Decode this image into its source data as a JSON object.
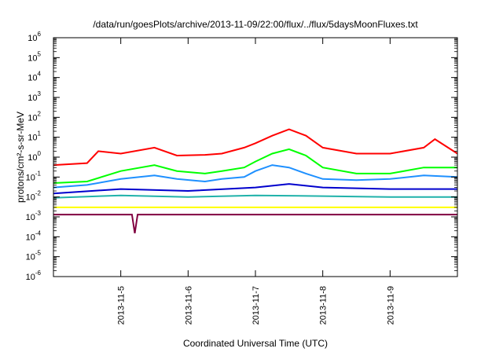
{
  "chart_data": {
    "type": "line",
    "title": "/data/run/goesPlots/archive/2013-11-09/22:00/flux/../flux/5daysMoonFluxes.txt",
    "xlabel": "Coordinated Universal Time (UTC)",
    "ylabel": "protons/cm²-s-sr-MeV",
    "y_scale": "log",
    "ylim": [
      1e-06,
      1000000.0
    ],
    "xlim": [
      "2013-11-04T00:00",
      "2013-11-10T00:00"
    ],
    "grid": false,
    "y_ticks": [
      {
        "value": 1e-06,
        "label": "10",
        "exp": "-6"
      },
      {
        "value": 1e-05,
        "label": "10",
        "exp": "-5"
      },
      {
        "value": 0.0001,
        "label": "10",
        "exp": "-4"
      },
      {
        "value": 0.001,
        "label": "10",
        "exp": "-3"
      },
      {
        "value": 0.01,
        "label": "10",
        "exp": "-2"
      },
      {
        "value": 0.1,
        "label": "10",
        "exp": "-1"
      },
      {
        "value": 1,
        "label": "10",
        "exp": "0"
      },
      {
        "value": 10,
        "label": "10",
        "exp": "1"
      },
      {
        "value": 100,
        "label": "10",
        "exp": "2"
      },
      {
        "value": 1000,
        "label": "10",
        "exp": "3"
      },
      {
        "value": 10000,
        "label": "10",
        "exp": "4"
      },
      {
        "value": 100000,
        "label": "10",
        "exp": "5"
      },
      {
        "value": 1000000,
        "label": "10",
        "exp": "6"
      }
    ],
    "x_ticks": [
      "2013-11-5",
      "2013-11-6",
      "2013-11-7",
      "2013-11-8",
      "2013-11-9"
    ],
    "series": [
      {
        "color": "#ff0000",
        "x": [
          "2013-11-04T00:00",
          "2013-11-04T12:00",
          "2013-11-04T16:00",
          "2013-11-05T00:00",
          "2013-11-05T12:00",
          "2013-11-05T20:00",
          "2013-11-06T06:00",
          "2013-11-06T12:00",
          "2013-11-06T20:00",
          "2013-11-07T00:00",
          "2013-11-07T06:00",
          "2013-11-07T12:00",
          "2013-11-07T18:00",
          "2013-11-08T00:00",
          "2013-11-08T12:00",
          "2013-11-09T00:00",
          "2013-11-09T12:00",
          "2013-11-09T16:00",
          "2013-11-10T00:00"
        ],
        "values": [
          0.4,
          0.5,
          2,
          1.5,
          3,
          1.2,
          1.3,
          1.5,
          3,
          5,
          12,
          25,
          12,
          3,
          1.5,
          1.5,
          3,
          8,
          1.5
        ]
      },
      {
        "color": "#00ff00",
        "x": [
          "2013-11-04T00:00",
          "2013-11-04T12:00",
          "2013-11-05T00:00",
          "2013-11-05T12:00",
          "2013-11-05T20:00",
          "2013-11-06T06:00",
          "2013-11-06T12:00",
          "2013-11-06T20:00",
          "2013-11-07T00:00",
          "2013-11-07T06:00",
          "2013-11-07T12:00",
          "2013-11-07T18:00",
          "2013-11-08T00:00",
          "2013-11-08T12:00",
          "2013-11-09T00:00",
          "2013-11-09T12:00",
          "2013-11-10T00:00"
        ],
        "values": [
          0.05,
          0.06,
          0.2,
          0.4,
          0.2,
          0.15,
          0.2,
          0.3,
          0.6,
          1.5,
          2.5,
          1.2,
          0.3,
          0.15,
          0.15,
          0.3,
          0.3
        ]
      },
      {
        "color": "#1e90ff",
        "x": [
          "2013-11-04T00:00",
          "2013-11-04T12:00",
          "2013-11-05T00:00",
          "2013-11-05T12:00",
          "2013-11-05T20:00",
          "2013-11-06T06:00",
          "2013-11-06T12:00",
          "2013-11-06T20:00",
          "2013-11-07T00:00",
          "2013-11-07T06:00",
          "2013-11-07T12:00",
          "2013-11-07T18:00",
          "2013-11-08T00:00",
          "2013-11-08T12:00",
          "2013-11-09T00:00",
          "2013-11-09T12:00",
          "2013-11-10T00:00"
        ],
        "values": [
          0.03,
          0.04,
          0.08,
          0.12,
          0.08,
          0.06,
          0.08,
          0.1,
          0.2,
          0.4,
          0.3,
          0.15,
          0.08,
          0.07,
          0.08,
          0.12,
          0.1
        ]
      },
      {
        "color": "#0000cd",
        "x": [
          "2013-11-04T00:00",
          "2013-11-05T00:00",
          "2013-11-06T00:00",
          "2013-11-07T00:00",
          "2013-11-07T12:00",
          "2013-11-08T00:00",
          "2013-11-09T00:00",
          "2013-11-10T00:00"
        ],
        "values": [
          0.015,
          0.025,
          0.02,
          0.03,
          0.045,
          0.03,
          0.025,
          0.025
        ]
      },
      {
        "color": "#20b2aa",
        "x": [
          "2013-11-04T00:00",
          "2013-11-05T00:00",
          "2013-11-06T00:00",
          "2013-11-07T00:00",
          "2013-11-08T00:00",
          "2013-11-09T00:00",
          "2013-11-10T00:00"
        ],
        "values": [
          0.009,
          0.012,
          0.01,
          0.012,
          0.011,
          0.01,
          0.01
        ]
      },
      {
        "color": "#ffff00",
        "x": [
          "2013-11-04T00:00",
          "2013-11-10T00:00"
        ],
        "values": [
          0.003,
          0.003
        ]
      },
      {
        "color": "#800040",
        "x": [
          "2013-11-04T00:00",
          "2013-11-05T04:00",
          "2013-11-05T05:00",
          "2013-11-05T06:00",
          "2013-11-10T00:00"
        ],
        "values": [
          0.0013,
          0.0013,
          0.00015,
          0.0013,
          0.0013
        ]
      }
    ]
  }
}
